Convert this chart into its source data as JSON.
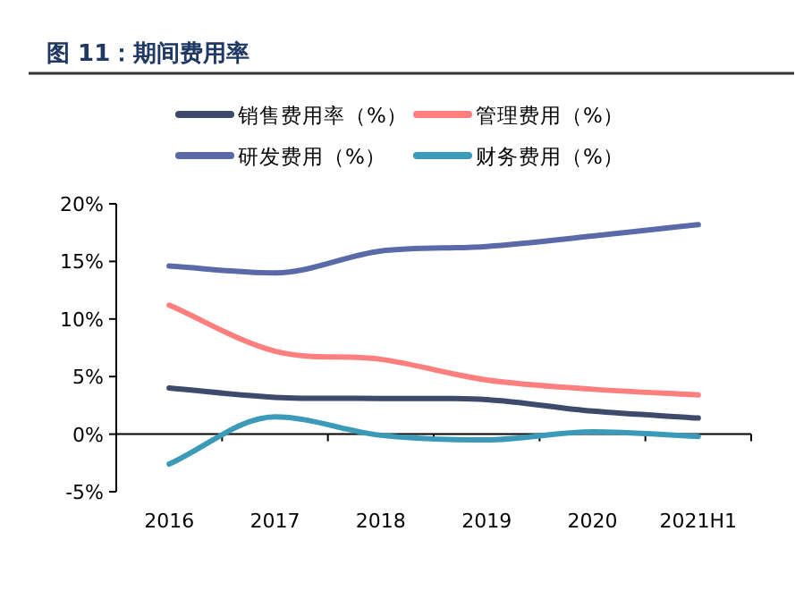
{
  "chart_data": {
    "type": "line",
    "title": "图 11：期间费用率",
    "legend": "top",
    "categories": [
      "2016",
      "2017",
      "2018",
      "2019",
      "2020",
      "2021H1"
    ],
    "ylim": [
      -5,
      20
    ],
    "yticks": [
      {
        "value": -5,
        "label": "-5%"
      },
      {
        "value": 0,
        "label": "0%"
      },
      {
        "value": 5,
        "label": "5%"
      },
      {
        "value": 10,
        "label": "10%"
      },
      {
        "value": 15,
        "label": "15%"
      },
      {
        "value": 20,
        "label": "20%"
      }
    ],
    "series": [
      {
        "name": "销售费用率（%）",
        "color": "#3d4a6b",
        "values": [
          4.0,
          3.2,
          3.1,
          3.0,
          2.0,
          1.4
        ]
      },
      {
        "name": "管理费用（%）",
        "color": "#ff7f7f",
        "values": [
          11.2,
          7.2,
          6.5,
          4.7,
          3.9,
          3.4
        ]
      },
      {
        "name": "研发费用（%）",
        "color": "#5a6aa8",
        "values": [
          14.6,
          14.0,
          15.9,
          16.3,
          17.2,
          18.2
        ]
      },
      {
        "name": "财务费用（%）",
        "color": "#3a9ab8",
        "values": [
          -2.6,
          1.5,
          -0.1,
          -0.5,
          0.2,
          -0.2
        ]
      }
    ]
  }
}
